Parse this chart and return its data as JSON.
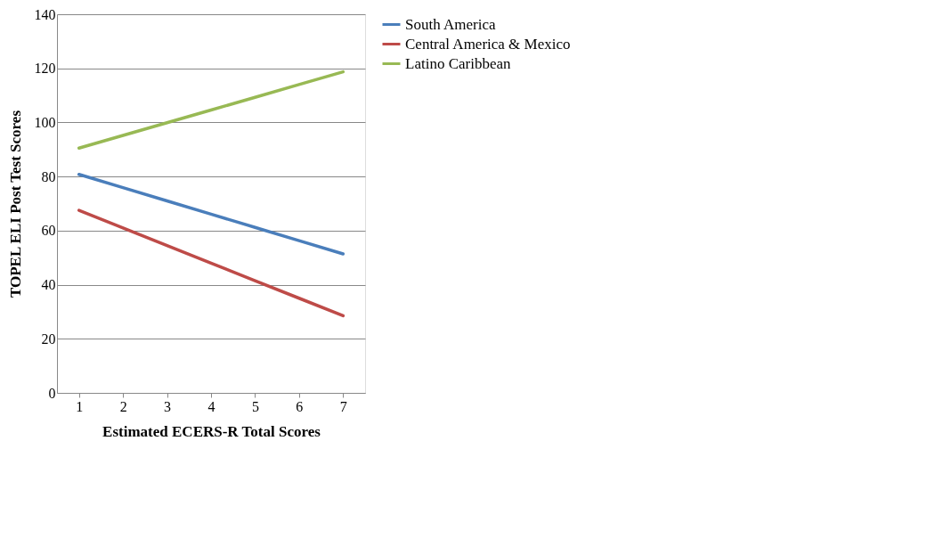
{
  "chart_data": {
    "type": "line",
    "xlabel": "Estimated ECERS-R Total Scores",
    "ylabel": "TOPEL ELI Post Test Scores",
    "categories": [
      "1",
      "2",
      "3",
      "4",
      "5",
      "6",
      "7"
    ],
    "series": [
      {
        "name": "South America",
        "color": "#4a7ebb",
        "values": [
          80.8,
          75.9,
          71.0,
          66.1,
          61.2,
          56.3,
          51.4
        ]
      },
      {
        "name": "Central America & Mexico",
        "color": "#be4b48",
        "values": [
          67.5,
          61.0,
          54.5,
          48.0,
          41.5,
          35.0,
          28.5
        ]
      },
      {
        "name": "Latino Caribbean",
        "color": "#98b954",
        "values": [
          90.5,
          95.2,
          99.9,
          104.6,
          109.3,
          114.0,
          118.7
        ]
      }
    ],
    "ylim": [
      0,
      140
    ],
    "yticks": [
      0,
      20,
      40,
      60,
      80,
      100,
      120,
      140
    ],
    "grid": "y",
    "legend": "right",
    "marker": "none",
    "line_style": "solid"
  }
}
